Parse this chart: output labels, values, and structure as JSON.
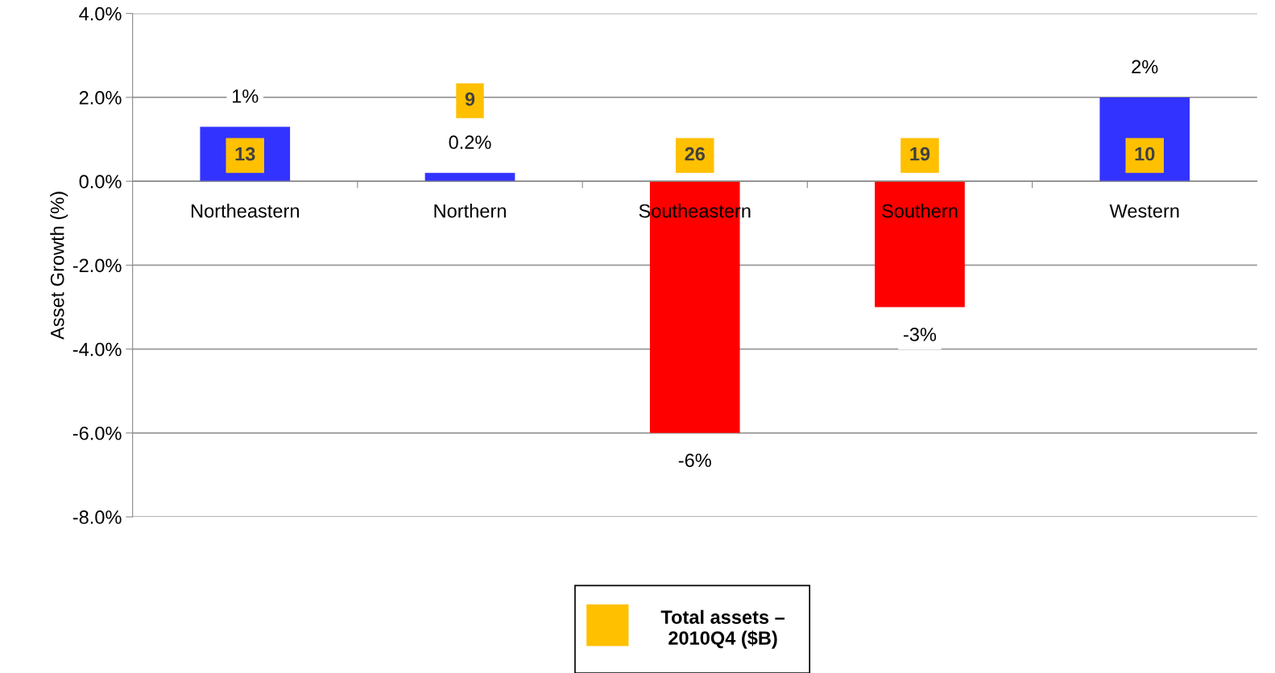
{
  "chart_data": {
    "type": "bar",
    "ylabel": "Asset Growth (%)",
    "categories": [
      "Northeastern",
      "Northern",
      "Southeastern",
      "Southern",
      "Western"
    ],
    "series": [
      {
        "values": [
          1.3,
          0.2,
          -6,
          -3,
          2
        ],
        "colors": [
          "#3333ff",
          "#3333ff",
          "#ff0000",
          "#ff0000",
          "#3333ff"
        ],
        "value_labels": [
          "1%",
          "0.2%",
          "-6%",
          "-3%",
          "2%"
        ]
      }
    ],
    "annotations": [
      "13",
      "9",
      "26",
      "19",
      "10",
      "Total assets – 2010Q4 ($B)"
    ],
    "ylim": [
      -8,
      4
    ],
    "yticks": [
      {
        "value": -8,
        "label": "-8.0%"
      },
      {
        "value": -6,
        "label": "-6.0%"
      },
      {
        "value": -4,
        "label": "-4.0%"
      },
      {
        "value": -2,
        "label": "-2.0%"
      },
      {
        "value": 0,
        "label": "0.0%"
      },
      {
        "value": 2,
        "label": "2.0%"
      },
      {
        "value": 4,
        "label": "4.0%"
      }
    ],
    "grid": "y"
  }
}
